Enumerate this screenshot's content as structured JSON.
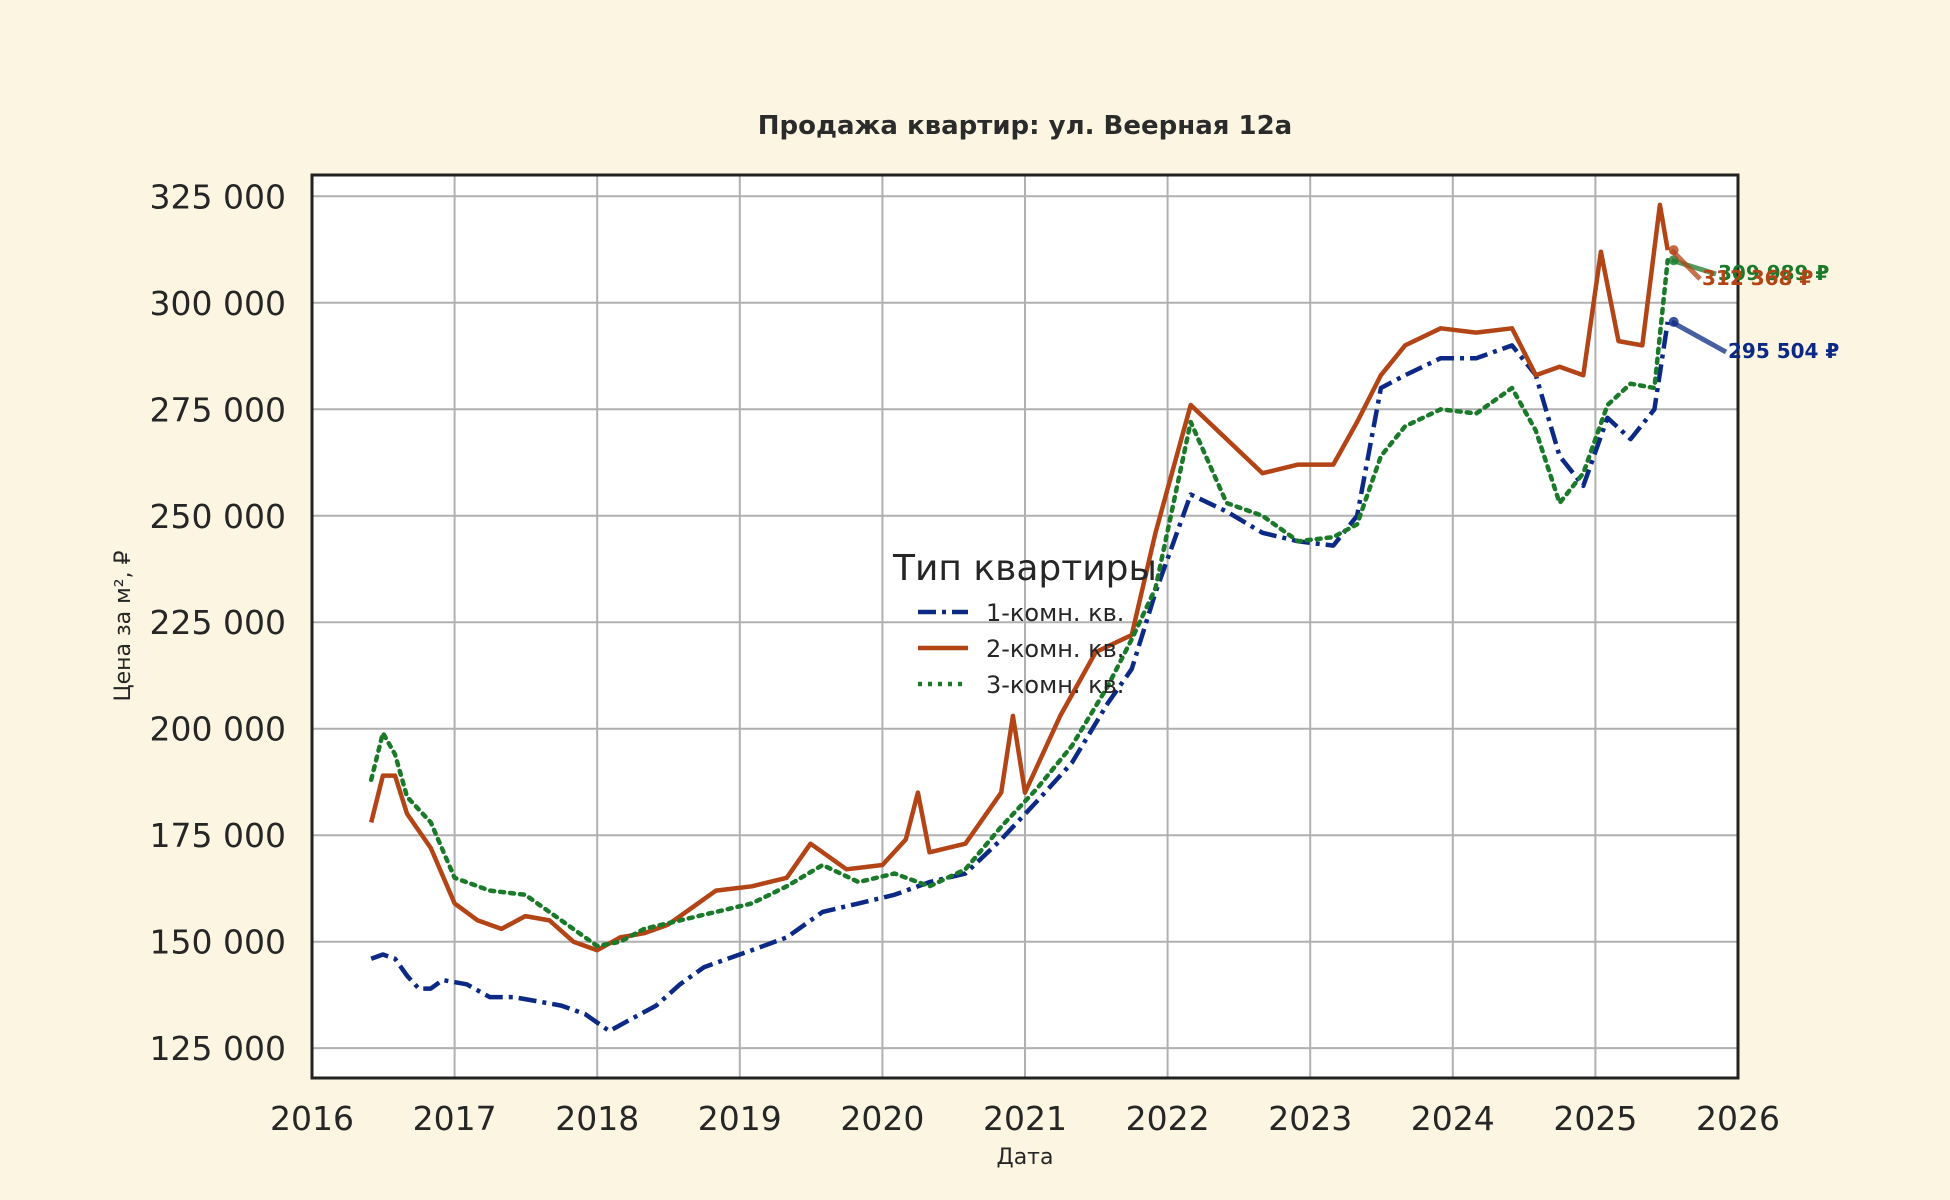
{
  "chart_data": {
    "type": "line",
    "title": "Продажа квартир: ул. Веерная 12а",
    "xlabel": "Дата",
    "ylabel": "Цена за м², ₽",
    "xlim": [
      "2016-01-01",
      "2026-01-01"
    ],
    "ylim": [
      118000,
      330000
    ],
    "x_ticks": [
      "2016",
      "2017",
      "2018",
      "2019",
      "2020",
      "2021",
      "2022",
      "2023",
      "2024",
      "2025",
      "2026"
    ],
    "y_ticks": [
      125000,
      150000,
      175000,
      200000,
      225000,
      250000,
      275000,
      300000,
      325000
    ],
    "y_tick_labels": [
      "125 000",
      "150 000",
      "175 000",
      "200 000",
      "225 000",
      "250 000",
      "275 000",
      "300 000",
      "325 000"
    ],
    "grid": true,
    "legend": {
      "title": "Тип квартиры",
      "placement": "center",
      "entries": [
        "1-комн. кв.",
        "2-комн. кв.",
        "3-комн. кв."
      ]
    },
    "series": [
      {
        "name": "1-комн. кв.",
        "color": "#0c2a85",
        "style": "dashdot",
        "points": [
          [
            "2016-06-01",
            146000
          ],
          [
            "2016-07-01",
            147000
          ],
          [
            "2016-08-01",
            146000
          ],
          [
            "2016-09-01",
            142000
          ],
          [
            "2016-10-01",
            139000
          ],
          [
            "2016-11-01",
            139000
          ],
          [
            "2016-12-01",
            141000
          ],
          [
            "2017-02-01",
            140000
          ],
          [
            "2017-04-01",
            137000
          ],
          [
            "2017-06-01",
            137000
          ],
          [
            "2017-08-01",
            136000
          ],
          [
            "2017-10-01",
            135000
          ],
          [
            "2017-12-01",
            133000
          ],
          [
            "2018-02-01",
            129000
          ],
          [
            "2018-04-01",
            132000
          ],
          [
            "2018-06-01",
            135000
          ],
          [
            "2018-08-01",
            140000
          ],
          [
            "2018-10-01",
            144000
          ],
          [
            "2018-12-01",
            146000
          ],
          [
            "2019-02-01",
            148000
          ],
          [
            "2019-05-01",
            151000
          ],
          [
            "2019-08-01",
            157000
          ],
          [
            "2019-11-01",
            159000
          ],
          [
            "2020-02-01",
            161000
          ],
          [
            "2020-05-01",
            164000
          ],
          [
            "2020-08-01",
            166000
          ],
          [
            "2020-11-01",
            174000
          ],
          [
            "2021-02-01",
            183000
          ],
          [
            "2021-05-01",
            192000
          ],
          [
            "2021-08-01",
            206000
          ],
          [
            "2021-10-01",
            214000
          ],
          [
            "2021-12-01",
            232000
          ],
          [
            "2022-03-01",
            255000
          ],
          [
            "2022-06-01",
            251000
          ],
          [
            "2022-09-01",
            246000
          ],
          [
            "2022-12-01",
            244000
          ],
          [
            "2023-03-01",
            243000
          ],
          [
            "2023-05-01",
            250000
          ],
          [
            "2023-07-01",
            280000
          ],
          [
            "2023-09-01",
            283000
          ],
          [
            "2023-12-01",
            287000
          ],
          [
            "2024-03-01",
            287000
          ],
          [
            "2024-06-01",
            290000
          ],
          [
            "2024-08-01",
            283000
          ],
          [
            "2024-10-01",
            264000
          ],
          [
            "2024-12-01",
            257000
          ],
          [
            "2025-02-01",
            273000
          ],
          [
            "2025-04-01",
            268000
          ],
          [
            "2025-06-01",
            275000
          ],
          [
            "2025-07-05",
            295504
          ]
        ]
      },
      {
        "name": "2-комн. кв.",
        "color": "#b34416",
        "style": "solid",
        "points": [
          [
            "2016-06-01",
            178000
          ],
          [
            "2016-07-01",
            189000
          ],
          [
            "2016-08-01",
            189000
          ],
          [
            "2016-09-01",
            180000
          ],
          [
            "2016-11-01",
            172000
          ],
          [
            "2017-01-01",
            159000
          ],
          [
            "2017-03-01",
            155000
          ],
          [
            "2017-05-01",
            153000
          ],
          [
            "2017-07-01",
            156000
          ],
          [
            "2017-09-01",
            155000
          ],
          [
            "2017-11-01",
            150000
          ],
          [
            "2018-01-01",
            148000
          ],
          [
            "2018-03-01",
            151000
          ],
          [
            "2018-05-01",
            152000
          ],
          [
            "2018-07-01",
            154000
          ],
          [
            "2018-09-01",
            158000
          ],
          [
            "2018-11-01",
            162000
          ],
          [
            "2019-02-01",
            163000
          ],
          [
            "2019-05-01",
            165000
          ],
          [
            "2019-07-01",
            173000
          ],
          [
            "2019-10-01",
            167000
          ],
          [
            "2020-01-01",
            168000
          ],
          [
            "2020-03-01",
            174000
          ],
          [
            "2020-04-01",
            185000
          ],
          [
            "2020-05-01",
            171000
          ],
          [
            "2020-08-01",
            173000
          ],
          [
            "2020-11-01",
            185000
          ],
          [
            "2020-12-01",
            203000
          ],
          [
            "2021-01-01",
            185000
          ],
          [
            "2021-04-01",
            203000
          ],
          [
            "2021-07-01",
            218000
          ],
          [
            "2021-10-01",
            222000
          ],
          [
            "2021-12-01",
            246000
          ],
          [
            "2022-03-01",
            276000
          ],
          [
            "2022-06-01",
            268000
          ],
          [
            "2022-09-01",
            260000
          ],
          [
            "2022-12-01",
            262000
          ],
          [
            "2023-03-01",
            262000
          ],
          [
            "2023-05-01",
            272000
          ],
          [
            "2023-07-01",
            283000
          ],
          [
            "2023-09-01",
            290000
          ],
          [
            "2023-12-01",
            294000
          ],
          [
            "2024-03-01",
            293000
          ],
          [
            "2024-06-01",
            294000
          ],
          [
            "2024-08-01",
            283000
          ],
          [
            "2024-10-01",
            285000
          ],
          [
            "2024-12-01",
            283000
          ],
          [
            "2025-01-15",
            312000
          ],
          [
            "2025-03-01",
            291000
          ],
          [
            "2025-05-01",
            290000
          ],
          [
            "2025-06-15",
            323000
          ],
          [
            "2025-07-05",
            312368
          ]
        ]
      },
      {
        "name": "3-комн. кв.",
        "color": "#1a7a2a",
        "style": "dotted",
        "points": [
          [
            "2016-06-01",
            188000
          ],
          [
            "2016-07-01",
            199000
          ],
          [
            "2016-08-01",
            194000
          ],
          [
            "2016-09-01",
            184000
          ],
          [
            "2016-11-01",
            178000
          ],
          [
            "2017-01-01",
            165000
          ],
          [
            "2017-04-01",
            162000
          ],
          [
            "2017-07-01",
            161000
          ],
          [
            "2017-10-01",
            155000
          ],
          [
            "2018-01-01",
            149000
          ],
          [
            "2018-03-01",
            150000
          ],
          [
            "2018-05-01",
            153000
          ],
          [
            "2018-08-01",
            155000
          ],
          [
            "2018-11-01",
            157000
          ],
          [
            "2019-02-01",
            159000
          ],
          [
            "2019-05-01",
            163000
          ],
          [
            "2019-08-01",
            168000
          ],
          [
            "2019-11-01",
            164000
          ],
          [
            "2020-02-01",
            166000
          ],
          [
            "2020-05-01",
            163000
          ],
          [
            "2020-08-01",
            167000
          ],
          [
            "2020-11-01",
            177000
          ],
          [
            "2021-02-01",
            186000
          ],
          [
            "2021-05-01",
            196000
          ],
          [
            "2021-08-01",
            210000
          ],
          [
            "2021-10-01",
            221000
          ],
          [
            "2021-12-01",
            233000
          ],
          [
            "2022-03-01",
            272000
          ],
          [
            "2022-06-01",
            253000
          ],
          [
            "2022-09-01",
            250000
          ],
          [
            "2022-12-01",
            244000
          ],
          [
            "2023-03-01",
            245000
          ],
          [
            "2023-05-01",
            248000
          ],
          [
            "2023-07-01",
            264000
          ],
          [
            "2023-09-01",
            271000
          ],
          [
            "2023-12-01",
            275000
          ],
          [
            "2024-03-01",
            274000
          ],
          [
            "2024-06-01",
            280000
          ],
          [
            "2024-08-01",
            270000
          ],
          [
            "2024-10-01",
            253000
          ],
          [
            "2024-12-01",
            260000
          ],
          [
            "2025-02-01",
            276000
          ],
          [
            "2025-04-01",
            281000
          ],
          [
            "2025-06-01",
            280000
          ],
          [
            "2025-07-05",
            309989
          ]
        ]
      }
    ],
    "annotations": [
      {
        "series": "3-комн. кв.",
        "text": "309 989 ₽",
        "color": "#1a7a2a"
      },
      {
        "series": "2-комн. кв.",
        "text": "312 368 ₽",
        "color": "#b34416"
      },
      {
        "series": "1-комн. кв.",
        "text": "295 504 ₽",
        "color": "#0c2a85"
      }
    ]
  }
}
